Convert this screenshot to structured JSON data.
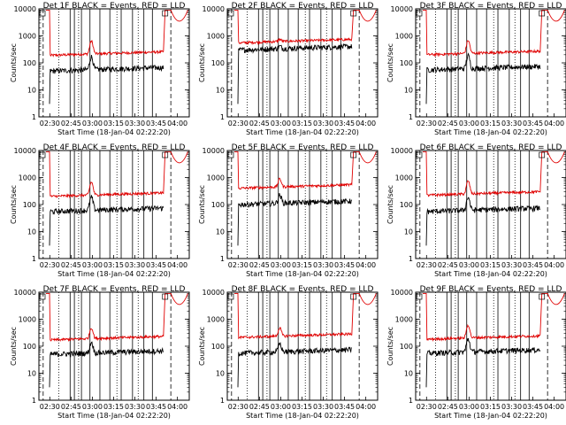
{
  "chart_data": {
    "type": "line",
    "x_ticks": [
      "02:30",
      "02:45",
      "03:00",
      "03:15",
      "03:30",
      "03:45",
      "04:00"
    ],
    "xlabel": "Start Time (18-Jan-04 02:22:20)",
    "ylabel": "Counts/sec",
    "y_ticks": [
      "1",
      "10",
      "100",
      "1000",
      "10000"
    ],
    "ylim": [
      1,
      10000
    ],
    "y_scale": "log",
    "colors": {
      "black_series": "#000000",
      "red_series": "#e00000",
      "axes": "#000000"
    },
    "panels": [
      {
        "title": "Det 1F BLACK = Events, RED = LLD",
        "red_level": 190,
        "black_level": 50,
        "peak": 3.0
      },
      {
        "title": "Det 2F BLACK = Events, RED = LLD",
        "red_level": 550,
        "black_level": 300,
        "peak": 1.2
      },
      {
        "title": "Det 3F BLACK = Events, RED = LLD",
        "red_level": 200,
        "black_level": 55,
        "peak": 3.0
      },
      {
        "title": "Det 4F BLACK = Events, RED = LLD",
        "red_level": 200,
        "black_level": 55,
        "peak": 3.0
      },
      {
        "title": "Det 5F BLACK = Events, RED = LLD",
        "red_level": 400,
        "black_level": 100,
        "peak": 2.0
      },
      {
        "title": "Det 6F BLACK = Events, RED = LLD",
        "red_level": 220,
        "black_level": 55,
        "peak": 3.0
      },
      {
        "title": "Det 7F BLACK = Events, RED = LLD",
        "red_level": 170,
        "black_level": 50,
        "peak": 2.5
      },
      {
        "title": "Det 8F BLACK = Events, RED = LLD",
        "red_level": 210,
        "black_level": 55,
        "peak": 2.0
      },
      {
        "title": "Det 9F BLACK = Events, RED = LLD",
        "red_level": 180,
        "black_level": 55,
        "peak": 3.0
      }
    ]
  }
}
